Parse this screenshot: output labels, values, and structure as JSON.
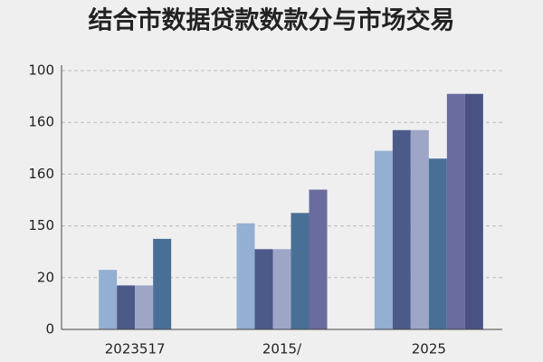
{
  "chart_data": {
    "type": "bar",
    "title": "结合市数据贷款数款分与市场交易",
    "categories": [
      "2023517",
      "2015/",
      "2025"
    ],
    "series": [
      {
        "color": "#93afd2",
        "values": [
          23,
          41,
          69
        ]
      },
      {
        "color": "#4c5a8a",
        "values": [
          17,
          31,
          77
        ]
      },
      {
        "color": "#9ea6c8",
        "values": [
          17,
          31,
          77
        ]
      },
      {
        "color": "#4a6f97",
        "values": [
          35,
          45,
          66
        ]
      },
      {
        "color": "#6a6b9e",
        "values": [
          null,
          54,
          91
        ]
      },
      {
        "color": "#4a5283",
        "values": [
          null,
          null,
          91
        ]
      }
    ],
    "ylim": [
      0,
      100
    ],
    "yticks": [
      0,
      20,
      {
        "value": 40,
        "label": "150"
      },
      {
        "value": 60,
        "label": "160"
      },
      {
        "value": 80,
        "label": "160"
      },
      100
    ],
    "grid": true
  }
}
